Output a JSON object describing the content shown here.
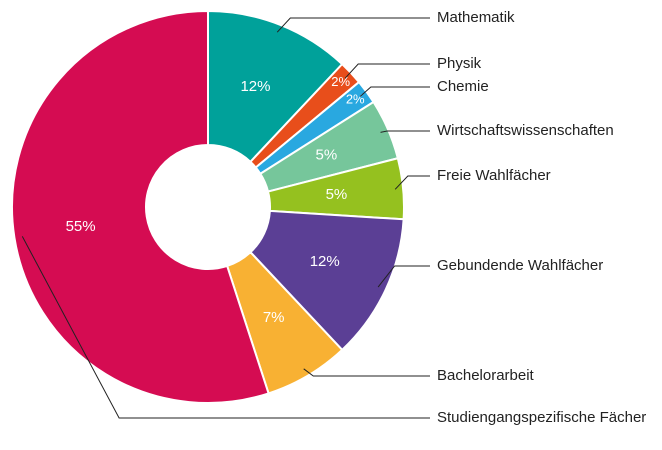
{
  "chart_data": {
    "type": "donut",
    "categories": [
      "Mathematik",
      "Physik",
      "Chemie",
      "Wirtschaftswissenschaften",
      "Freie Wahlfächer",
      "Gebundende Wahlfächer",
      "Bachelorarbeit",
      "Studiengangspezifische Fächer"
    ],
    "values": [
      12,
      2,
      2,
      5,
      5,
      12,
      7,
      55
    ],
    "value_labels": [
      "12%",
      "2%",
      "2%",
      "5%",
      "5%",
      "12%",
      "7%",
      "55%"
    ],
    "colors": [
      "#00a19a",
      "#e84e1b",
      "#29a8e0",
      "#76c69b",
      "#95c11f",
      "#5b3f95",
      "#f8b133",
      "#d50c52"
    ]
  }
}
